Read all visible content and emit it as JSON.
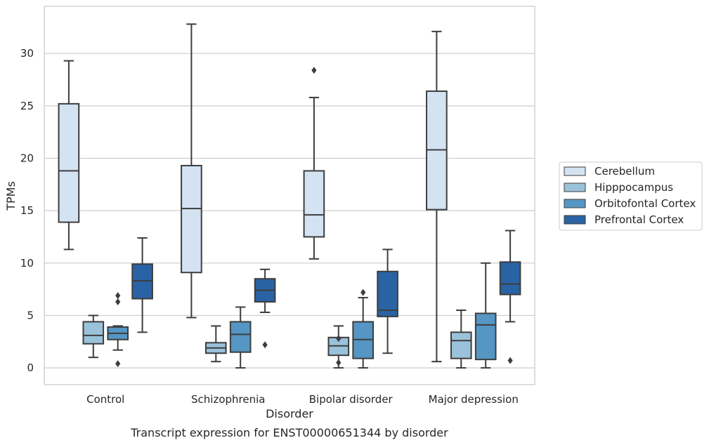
{
  "chart_data": {
    "type": "box",
    "title": "Transcript expression for ENST00000651344 by disorder",
    "xlabel": "Disorder",
    "ylabel": "TPMs",
    "ylim": [
      -1.6,
      34.5
    ],
    "yticks": [
      0,
      5,
      10,
      15,
      20,
      25,
      30
    ],
    "grid": "horizontal",
    "legend_position": "right",
    "categories": [
      "Control",
      "Schizophrenia",
      "Bipolar disorder",
      "Major depression"
    ],
    "series": [
      {
        "name": "Cerebellum",
        "color": "#d4e3f2",
        "boxes": [
          {
            "whisker_low": 11.3,
            "q1": 13.9,
            "median": 18.8,
            "q3": 25.2,
            "whisker_high": 29.3,
            "outliers": []
          },
          {
            "whisker_low": 4.8,
            "q1": 9.1,
            "median": 15.2,
            "q3": 19.3,
            "whisker_high": 32.8,
            "outliers": []
          },
          {
            "whisker_low": 10.4,
            "q1": 12.5,
            "median": 14.6,
            "q3": 18.8,
            "whisker_high": 25.8,
            "outliers": [
              28.4
            ]
          },
          {
            "whisker_low": 0.6,
            "q1": 15.1,
            "median": 20.8,
            "q3": 26.4,
            "whisker_high": 32.1,
            "outliers": []
          }
        ]
      },
      {
        "name": "Hipppocampus",
        "color": "#9ac2db",
        "boxes": [
          {
            "whisker_low": 1.0,
            "q1": 2.3,
            "median": 3.1,
            "q3": 4.4,
            "whisker_high": 5.0,
            "outliers": []
          },
          {
            "whisker_low": 0.6,
            "q1": 1.4,
            "median": 1.9,
            "q3": 2.4,
            "whisker_high": 4.0,
            "outliers": []
          },
          {
            "whisker_low": 0.0,
            "q1": 1.2,
            "median": 2.1,
            "q3": 2.9,
            "whisker_high": 4.0,
            "outliers": [
              2.8,
              0.5
            ]
          },
          {
            "whisker_low": 0.0,
            "q1": 0.9,
            "median": 2.6,
            "q3": 3.4,
            "whisker_high": 5.5,
            "outliers": []
          }
        ]
      },
      {
        "name": "Orbitofontal Cortex",
        "color": "#5596c4",
        "boxes": [
          {
            "whisker_low": 1.7,
            "q1": 2.7,
            "median": 3.3,
            "q3": 3.9,
            "whisker_high": 4.0,
            "outliers": [
              6.9,
              6.3,
              0.4
            ]
          },
          {
            "whisker_low": 0.0,
            "q1": 1.5,
            "median": 3.2,
            "q3": 4.4,
            "whisker_high": 5.8,
            "outliers": []
          },
          {
            "whisker_low": 0.0,
            "q1": 0.9,
            "median": 2.7,
            "q3": 4.4,
            "whisker_high": 6.7,
            "outliers": [
              7.2
            ]
          },
          {
            "whisker_low": 0.0,
            "q1": 0.8,
            "median": 4.1,
            "q3": 5.2,
            "whisker_high": 10.0,
            "outliers": []
          }
        ]
      },
      {
        "name": "Prefrontal Cortex",
        "color": "#2a63a4",
        "boxes": [
          {
            "whisker_low": 3.4,
            "q1": 6.6,
            "median": 8.3,
            "q3": 9.9,
            "whisker_high": 12.4,
            "outliers": []
          },
          {
            "whisker_low": 5.3,
            "q1": 6.3,
            "median": 7.4,
            "q3": 8.5,
            "whisker_high": 9.4,
            "outliers": [
              2.2
            ]
          },
          {
            "whisker_low": 1.4,
            "q1": 4.9,
            "median": 5.5,
            "q3": 9.2,
            "whisker_high": 11.3,
            "outliers": []
          },
          {
            "whisker_low": 4.4,
            "q1": 7.0,
            "median": 8.0,
            "q3": 10.1,
            "whisker_high": 13.1,
            "outliers": [
              0.7
            ]
          }
        ]
      }
    ]
  }
}
